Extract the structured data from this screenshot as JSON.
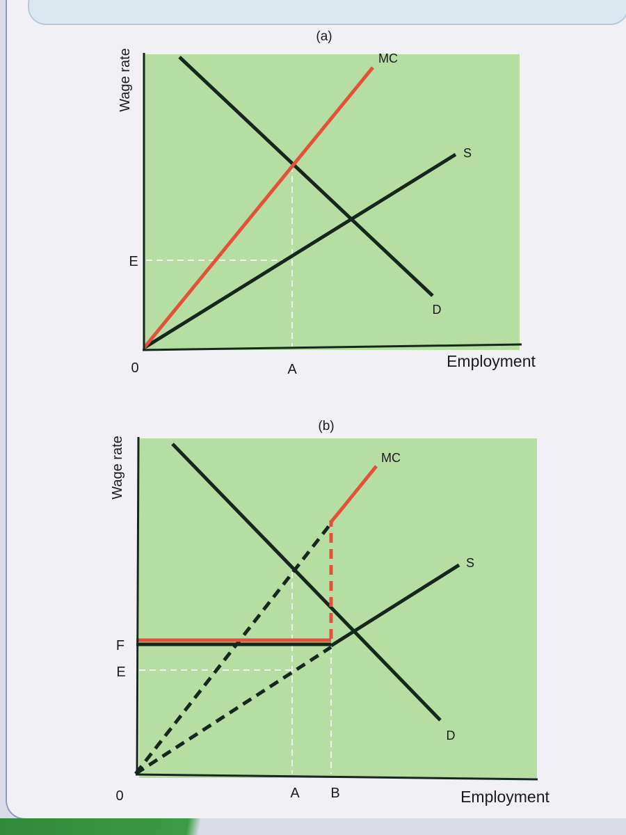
{
  "panel_a": {
    "title": "(a)",
    "y_axis_label": "Wage rate",
    "x_axis_label": "Employment",
    "origin_label": "0",
    "curves": {
      "mc": "MC",
      "s": "S",
      "d": "D"
    },
    "y_ticks": {
      "e": "E"
    },
    "x_ticks": {
      "a": "A"
    }
  },
  "panel_b": {
    "title": "(b)",
    "y_axis_label": "Wage rate",
    "x_axis_label": "Employment",
    "origin_label": "0",
    "curves": {
      "mc": "MC",
      "s": "S",
      "d": "D"
    },
    "y_ticks": {
      "f": "F",
      "e": "E"
    },
    "x_ticks": {
      "a": "A",
      "b": "B"
    }
  },
  "colors": {
    "plot_background": "#b6dea3",
    "mc_curve": "#e4513a",
    "dark_curves": "#15261b",
    "guide_lines": "#f4f4f4"
  }
}
